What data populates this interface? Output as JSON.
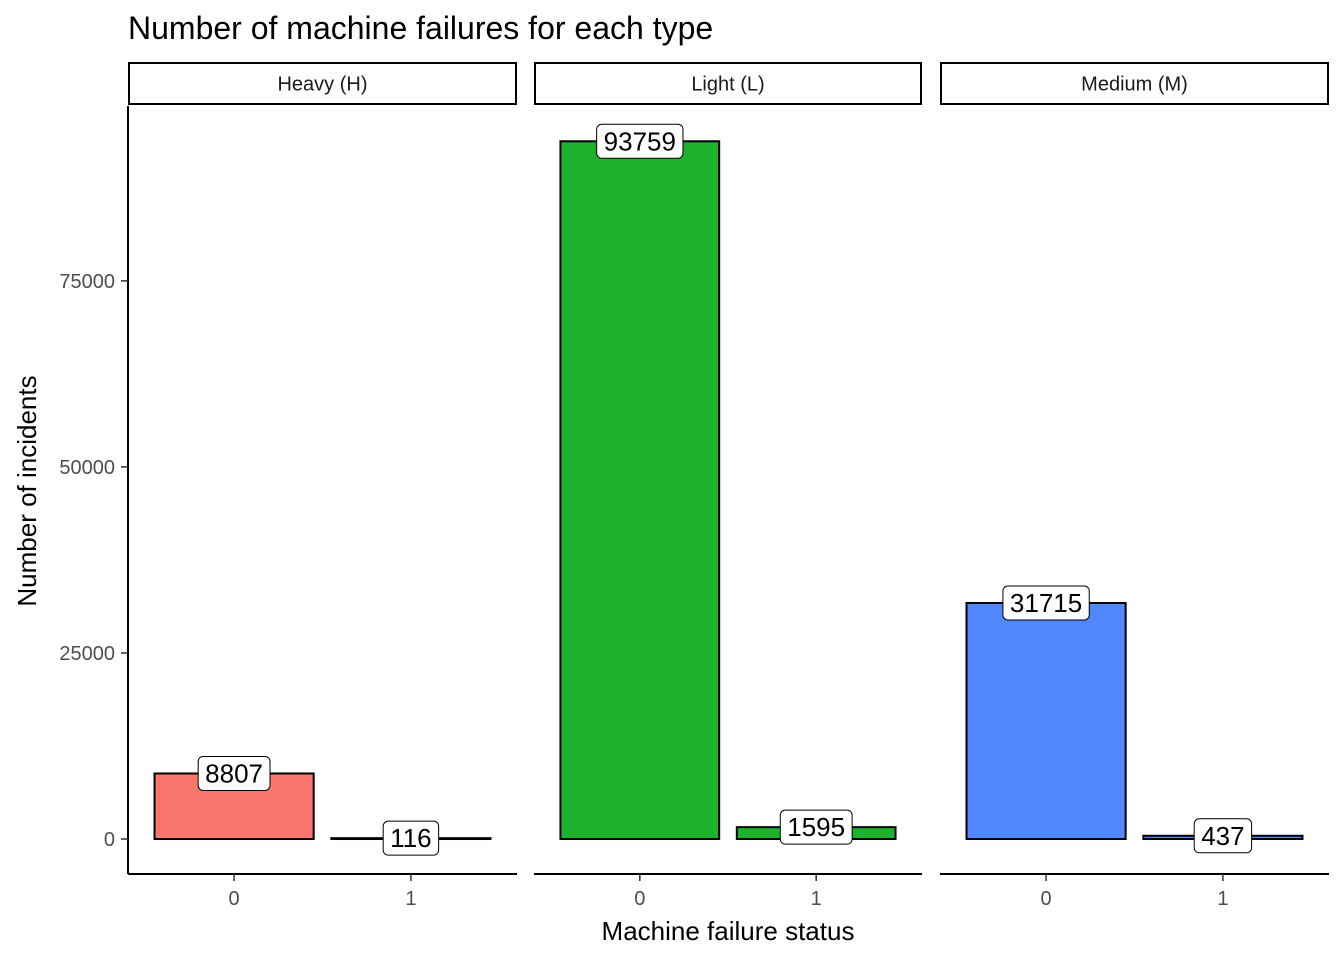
{
  "chart_data": {
    "type": "bar",
    "title": "Number of machine failures for each type",
    "xlabel": "Machine failure status",
    "ylabel": "Number of incidents",
    "categories": [
      "0",
      "1"
    ],
    "y_ticks": [
      "0",
      "25000",
      "50000",
      "75000"
    ],
    "ylim": [
      -4700,
      98500
    ],
    "grid": false,
    "legend": "none",
    "facets": [
      {
        "label": "Heavy (H)",
        "color": "#F8766D",
        "values": [
          8807,
          116
        ],
        "value_labels": [
          "8807",
          "116"
        ]
      },
      {
        "label": "Light (L)",
        "color": "#1CB22E",
        "values": [
          93759,
          1595
        ],
        "value_labels": [
          "93759",
          "1595"
        ]
      },
      {
        "label": "Medium (M)",
        "color": "#5087FF",
        "values": [
          31715,
          437
        ],
        "value_labels": [
          "31715",
          "437"
        ]
      }
    ]
  }
}
